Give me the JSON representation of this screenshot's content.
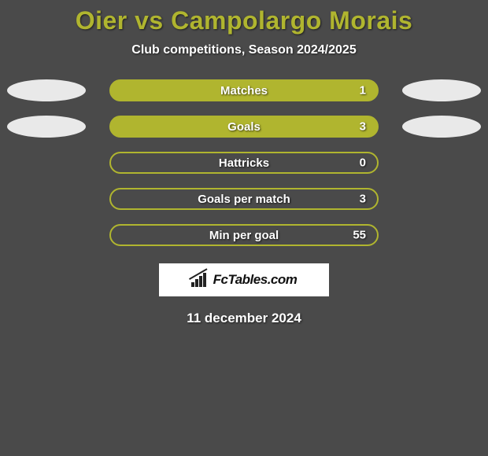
{
  "background_color": "#4a4a4a",
  "title": {
    "text": "Oier vs Campolargo Morais",
    "color": "#b0b52f",
    "fontsize": 32
  },
  "subtitle": {
    "text": "Club competitions, Season 2024/2025",
    "color": "#ffffff",
    "fontsize": 16
  },
  "ellipse_colors": {
    "left": "#e9e9e9",
    "right": "#e9e9e9"
  },
  "stats": [
    {
      "label": "Matches",
      "value": "1",
      "fill_color": "#b0b52f",
      "border_color": "#b0b52f",
      "show_ellipses": true
    },
    {
      "label": "Goals",
      "value": "3",
      "fill_color": "#b0b52f",
      "border_color": "#b0b52f",
      "show_ellipses": true
    },
    {
      "label": "Hattricks",
      "value": "0",
      "fill_color": "transparent",
      "border_color": "#b0b52f",
      "show_ellipses": false
    },
    {
      "label": "Goals per match",
      "value": "3",
      "fill_color": "transparent",
      "border_color": "#b0b52f",
      "show_ellipses": false
    },
    {
      "label": "Min per goal",
      "value": "55",
      "fill_color": "transparent",
      "border_color": "#b0b52f",
      "show_ellipses": false
    }
  ],
  "logo": {
    "text": "FcTables.com",
    "background": "#ffffff"
  },
  "date": {
    "text": "11 december 2024",
    "color": "#ffffff",
    "fontsize": 17
  }
}
